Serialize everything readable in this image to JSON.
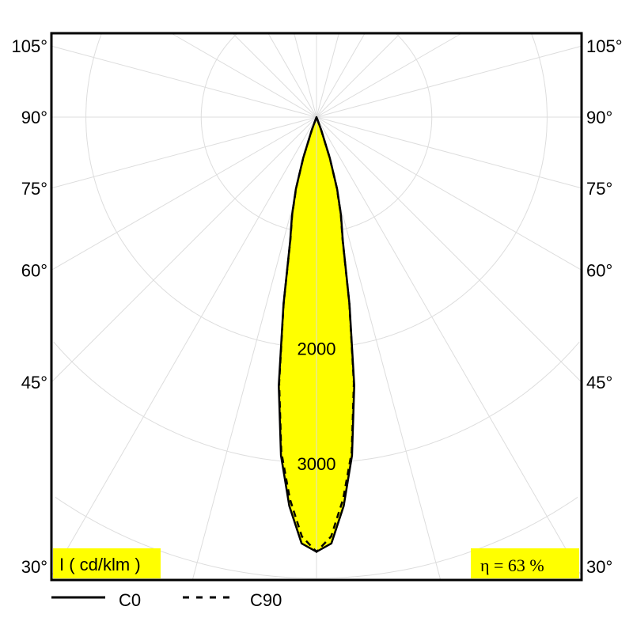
{
  "chart_data": {
    "type": "polar",
    "unit_label": "I ( cd/klm )",
    "efficiency_label": "η = 63 %",
    "radial_ticks": [
      1000,
      2000,
      3000,
      4000,
      5000
    ],
    "radial_tick_labels": [
      "2000",
      "3000"
    ],
    "angle_grid_step": 15,
    "angle_labels_left": [
      "105°",
      "90°",
      "75°",
      "60°",
      "45°",
      "30°"
    ],
    "angle_labels_right": [
      "105°",
      "90°",
      "75°",
      "60°",
      "45°",
      "30°"
    ],
    "angle_label_values": [
      105,
      90,
      75,
      60,
      45,
      30
    ],
    "grid": true,
    "legend_placement": "bottom",
    "fill_color": "#ffff00",
    "grid_color": "#dddddd",
    "series": [
      {
        "name": "C0",
        "style": "solid",
        "angles": [
          0,
          2,
          4,
          6,
          8,
          10,
          12,
          14,
          16,
          18,
          20,
          21
        ],
        "values": [
          3770,
          3700,
          3380,
          2950,
          2350,
          1650,
          1100,
          880,
          650,
          375,
          120,
          0
        ]
      },
      {
        "name": "C90",
        "style": "dashed",
        "angles": [
          0,
          2,
          4,
          6,
          8,
          10,
          12,
          14,
          16,
          18,
          20,
          21
        ],
        "values": [
          3770,
          3640,
          3320,
          2920,
          2330,
          1640,
          1090,
          870,
          640,
          370,
          115,
          0
        ]
      }
    ]
  }
}
